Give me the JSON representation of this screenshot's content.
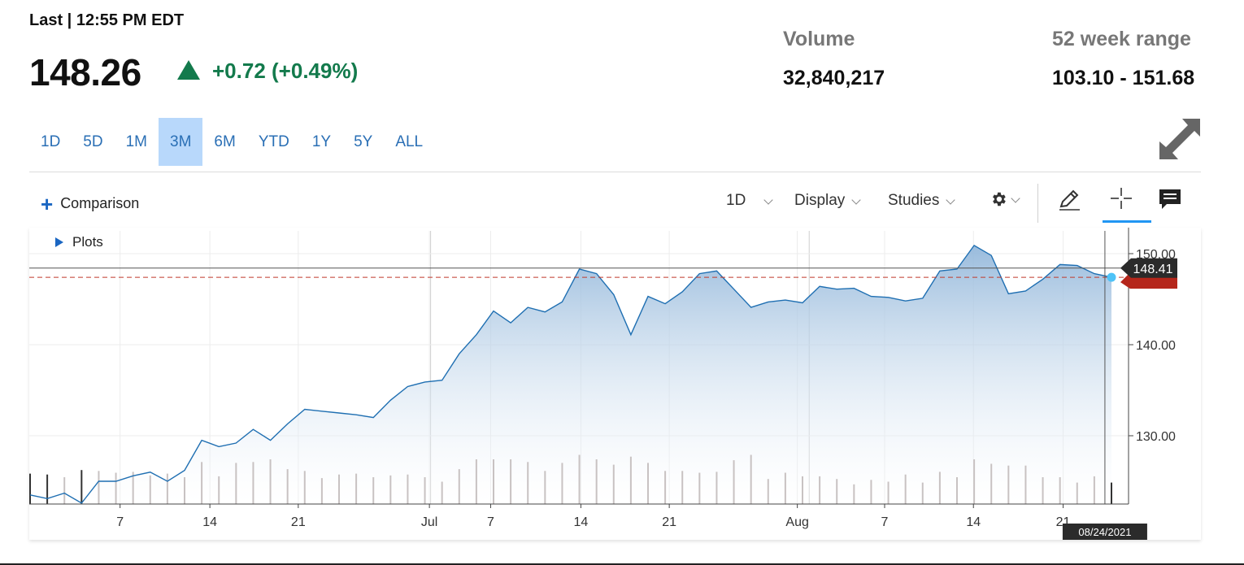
{
  "quote": {
    "last_label": "Last | 12:55 PM EDT",
    "price": "148.26",
    "change": "+0.72 (+0.49%)",
    "volume_label": "Volume",
    "volume_value": "32,840,217",
    "range_label": "52 week range",
    "range_value": "103.10 - 151.68",
    "up_color": "#137a4c"
  },
  "ranges": [
    "1D",
    "5D",
    "1M",
    "3M",
    "6M",
    "YTD",
    "1Y",
    "5Y",
    "ALL"
  ],
  "active_range": "3M",
  "toolbar": {
    "comparison": "Comparison",
    "interval": "1D",
    "display": "Display",
    "studies": "Studies",
    "plots": "Plots",
    "icons": [
      "gear-icon",
      "pencil-icon",
      "crosshair-icon",
      "comment-icon",
      "expand-icon"
    ]
  },
  "chart_data": {
    "type": "area",
    "title": "",
    "xlabel": "",
    "ylabel": "",
    "ylim": [
      122.5,
      152.5
    ],
    "y_ticks": [
      "150.00",
      "140.00",
      "130.00"
    ],
    "x_ticks": [
      "7",
      "14",
      "21",
      "Jul",
      "7",
      "14",
      "21",
      "Aug",
      "7",
      "14",
      "21"
    ],
    "current_price_tag": "148.41",
    "crosshair_date": "08/24/2021",
    "last_value_line": 147.4,
    "accent_color": "#1f6fb2",
    "series": [
      {
        "values": [
          123.5,
          123.1,
          123.7,
          122.6,
          125.0,
          125.0,
          125.6,
          126.0,
          125.0,
          126.2,
          129.5,
          128.8,
          129.2,
          130.7,
          129.5,
          131.3,
          132.9,
          132.7,
          132.5,
          132.3,
          132.0,
          133.9,
          135.4,
          135.9,
          136.1,
          139.0,
          141.1,
          143.7,
          142.4,
          144.1,
          143.6,
          144.7,
          148.3,
          147.8,
          145.5,
          141.1,
          145.3,
          144.5,
          145.8,
          147.8,
          148.1,
          146.1,
          144.1,
          144.7,
          144.9,
          144.6,
          146.4,
          146.1,
          146.2,
          145.3,
          145.2,
          144.8,
          145.1,
          148.1,
          148.3,
          150.9,
          149.8,
          145.6,
          145.9,
          147.2,
          148.8,
          148.7,
          147.8,
          147.4
        ]
      }
    ],
    "volume_series": [
      {
        "values": [
          34,
          33,
          30,
          38,
          37,
          35,
          36,
          32,
          34,
          30,
          47,
          31,
          46,
          47,
          50,
          39,
          37,
          29,
          33,
          34,
          30,
          32,
          33,
          30,
          25,
          39,
          50,
          50,
          50,
          47,
          37,
          46,
          55,
          50,
          44,
          53,
          46,
          37,
          37,
          35,
          36,
          49,
          55,
          28,
          35,
          31,
          31,
          28,
          22,
          27,
          25,
          33,
          24,
          36,
          30,
          50,
          45,
          43,
          43,
          30,
          30,
          24,
          31,
          24
        ]
      }
    ]
  }
}
